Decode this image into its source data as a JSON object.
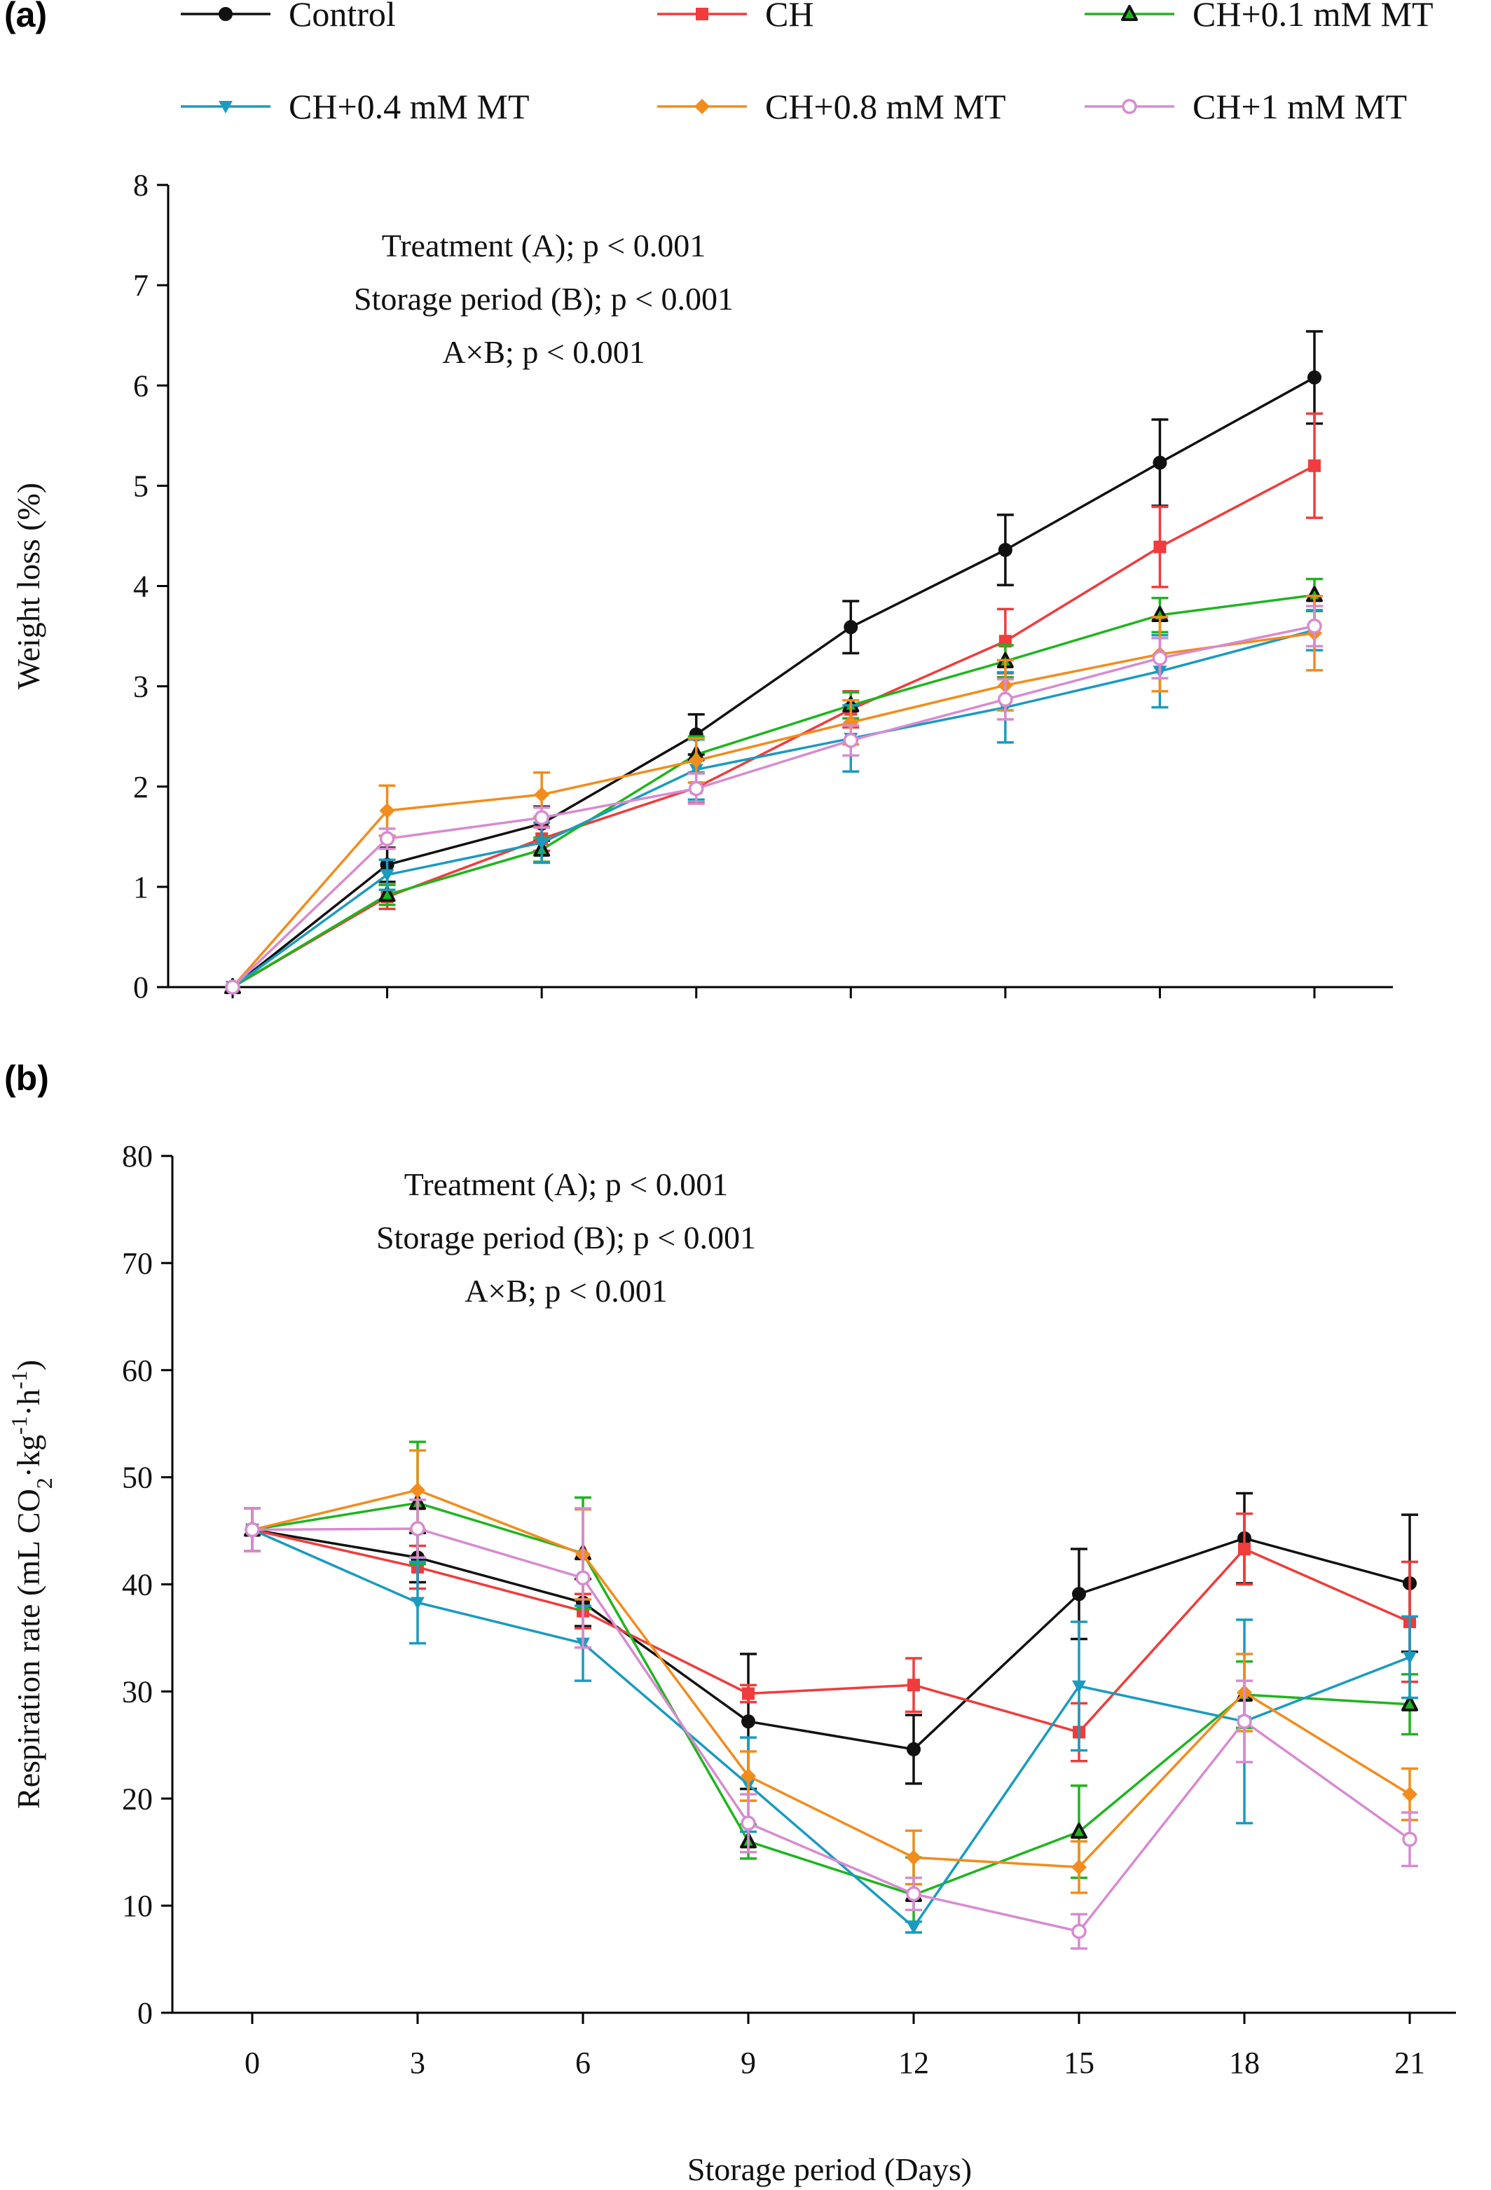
{
  "legend": [
    {
      "name": "Control",
      "color": "#111111",
      "marker": "circle-filled"
    },
    {
      "name": "CH",
      "color": "#f03c3c",
      "marker": "square-filled"
    },
    {
      "name": "CH+0.1 mM MT",
      "color": "#1fb51f",
      "marker": "triangle-up-dark"
    },
    {
      "name": "CH+0.4 mM MT",
      "color": "#1a9bbf",
      "marker": "triangle-down-filled"
    },
    {
      "name": "CH+0.8 mM MT",
      "color": "#f28c1c",
      "marker": "diamond-filled"
    },
    {
      "name": "CH+1 mM MT",
      "color": "#d78bd0",
      "marker": "circle-open"
    }
  ],
  "xlabel": "Storage period (Days)",
  "chart_data": [
    {
      "panel": "(a)",
      "type": "line",
      "ylabel": "Weight loss (%)",
      "ylim": [
        0,
        8
      ],
      "yticks": [
        "0",
        "1",
        "2",
        "3",
        "4",
        "5",
        "6",
        "7",
        "8"
      ],
      "x": [
        0,
        3,
        6,
        9,
        12,
        15,
        18,
        21
      ],
      "xticklabels_shown": false,
      "annotations": [
        "Treatment (A); p < 0.001",
        "Storage period (B); p < 0.001",
        "A×B; p < 0.001"
      ],
      "series": [
        {
          "name": "Control",
          "values": [
            0,
            1.22,
            1.63,
            2.52,
            3.59,
            4.36,
            5.23,
            6.08
          ],
          "errors": [
            0,
            0.17,
            0.17,
            0.2,
            0.26,
            0.35,
            0.43,
            0.46
          ]
        },
        {
          "name": "CH",
          "values": [
            0,
            0.9,
            1.48,
            1.99,
            2.77,
            3.45,
            4.39,
            5.2
          ],
          "errors": [
            0,
            0.12,
            0.12,
            0.15,
            0.18,
            0.32,
            0.4,
            0.52
          ]
        },
        {
          "name": "CH+0.1 mM MT",
          "values": [
            0,
            0.92,
            1.37,
            2.32,
            2.81,
            3.25,
            3.71,
            3.91
          ],
          "errors": [
            0,
            0.1,
            0.12,
            0.18,
            0.13,
            0.16,
            0.17,
            0.16
          ]
        },
        {
          "name": "CH+0.4 mM MT",
          "values": [
            0,
            1.12,
            1.44,
            2.17,
            2.48,
            2.79,
            3.15,
            3.56
          ],
          "errors": [
            0,
            0.15,
            0.2,
            0.3,
            0.33,
            0.35,
            0.36,
            0.2
          ]
        },
        {
          "name": "CH+0.8 mM MT",
          "values": [
            0,
            1.76,
            1.92,
            2.26,
            2.64,
            3.01,
            3.32,
            3.53
          ],
          "errors": [
            0,
            0.25,
            0.22,
            0.22,
            0.22,
            0.25,
            0.37,
            0.37
          ]
        },
        {
          "name": "CH+1 mM MT",
          "values": [
            0,
            1.48,
            1.69,
            1.98,
            2.46,
            2.87,
            3.28,
            3.6
          ],
          "errors": [
            0,
            0.1,
            0.1,
            0.15,
            0.15,
            0.2,
            0.2,
            0.2
          ]
        }
      ]
    },
    {
      "panel": "(b)",
      "type": "line",
      "ylabel_parts": [
        "Respiration rate (mL CO",
        "2",
        "·kg",
        "-1",
        "·h",
        "-1",
        ")"
      ],
      "ylim": [
        0,
        80
      ],
      "yticks": [
        "0",
        "10",
        "20",
        "30",
        "40",
        "50",
        "60",
        "70",
        "80"
      ],
      "x": [
        0,
        3,
        6,
        9,
        12,
        15,
        18,
        21
      ],
      "xticks": [
        "0",
        "3",
        "6",
        "9",
        "12",
        "15",
        "18",
        "21"
      ],
      "annotations": [
        "Treatment (A); p < 0.001",
        "Storage period (B); p < 0.001",
        "A×B; p < 0.001"
      ],
      "series": [
        {
          "name": "Control",
          "values": [
            45.1,
            42.5,
            38.3,
            27.2,
            24.6,
            39.1,
            44.3,
            40.1
          ],
          "errors": [
            2.0,
            2.3,
            2.2,
            6.3,
            3.2,
            4.2,
            4.2,
            6.4
          ]
        },
        {
          "name": "CH",
          "values": [
            45.1,
            41.6,
            37.5,
            29.8,
            30.6,
            26.2,
            43.3,
            36.5
          ],
          "errors": [
            2.0,
            2.0,
            1.6,
            0.8,
            2.5,
            2.7,
            3.3,
            5.6
          ]
        },
        {
          "name": "CH+0.1 mM MT",
          "values": [
            45.1,
            47.6,
            42.9,
            16.0,
            11.0,
            16.9,
            29.7,
            28.8
          ],
          "errors": [
            2.0,
            5.7,
            5.2,
            1.6,
            3.5,
            4.3,
            3.1,
            2.8
          ]
        },
        {
          "name": "CH+0.4 mM MT",
          "values": [
            45.1,
            38.3,
            34.5,
            21.3,
            8.0,
            30.5,
            27.2,
            33.2
          ],
          "errors": [
            2.0,
            3.8,
            3.5,
            4.4,
            0.5,
            6.0,
            9.5,
            3.8
          ]
        },
        {
          "name": "CH+0.8 mM MT",
          "values": [
            45.1,
            48.8,
            42.8,
            22.1,
            14.5,
            13.6,
            29.9,
            20.4
          ],
          "errors": [
            2.0,
            3.7,
            4.2,
            2.3,
            2.5,
            2.4,
            3.6,
            2.4
          ]
        },
        {
          "name": "CH+1 mM MT",
          "values": [
            45.1,
            45.2,
            40.6,
            17.7,
            11.1,
            7.6,
            27.2,
            16.2
          ],
          "errors": [
            2.0,
            2.7,
            6.5,
            2.7,
            1.5,
            1.6,
            3.8,
            2.5
          ]
        }
      ]
    }
  ]
}
